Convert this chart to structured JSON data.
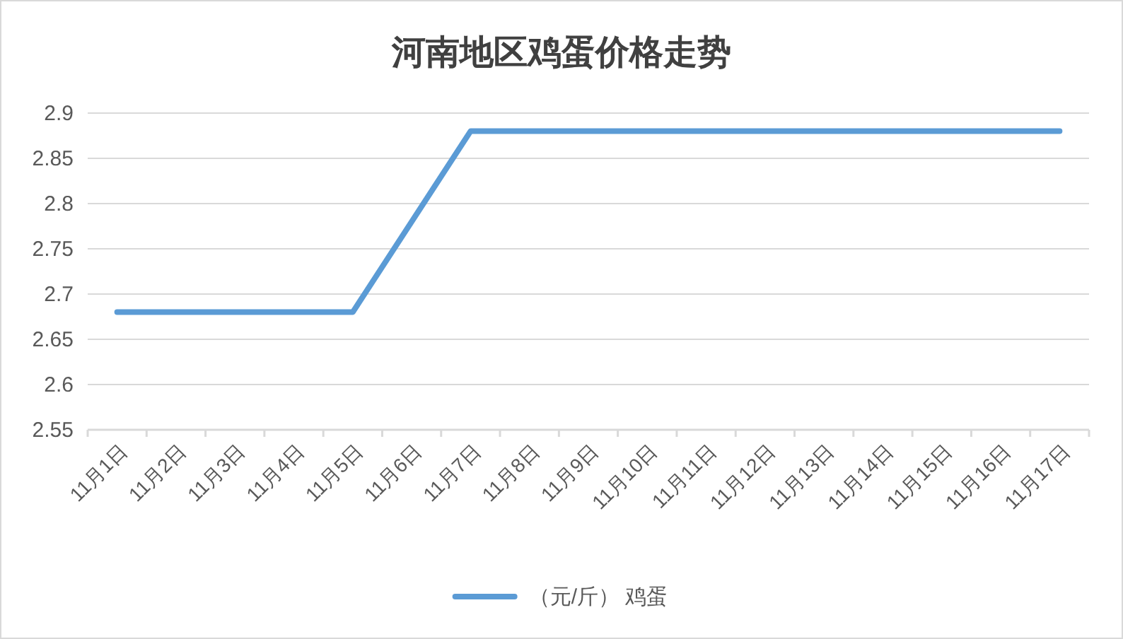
{
  "chart_data": {
    "type": "line",
    "title": "河南地区鸡蛋价格走势",
    "categories": [
      "11月1日",
      "11月2日",
      "11月3日",
      "11月4日",
      "11月5日",
      "11月6日",
      "11月7日",
      "11月8日",
      "11月9日",
      "11月10日",
      "11月11日",
      "11月12日",
      "11月13日",
      "11月14日",
      "11月15日",
      "11月16日",
      "11月17日"
    ],
    "series": [
      {
        "name": "（元/斤） 鸡蛋",
        "color": "#5b9bd5",
        "values": [
          2.68,
          2.68,
          2.68,
          2.68,
          2.68,
          2.78,
          2.88,
          2.88,
          2.88,
          2.88,
          2.88,
          2.88,
          2.88,
          2.88,
          2.88,
          2.88,
          2.88
        ]
      }
    ],
    "ylim": [
      2.55,
      2.9
    ],
    "yticks": [
      2.55,
      2.6,
      2.65,
      2.7,
      2.75,
      2.8,
      2.85,
      2.9
    ],
    "grid": "y",
    "legend": "bottom",
    "line_style": "solid"
  }
}
